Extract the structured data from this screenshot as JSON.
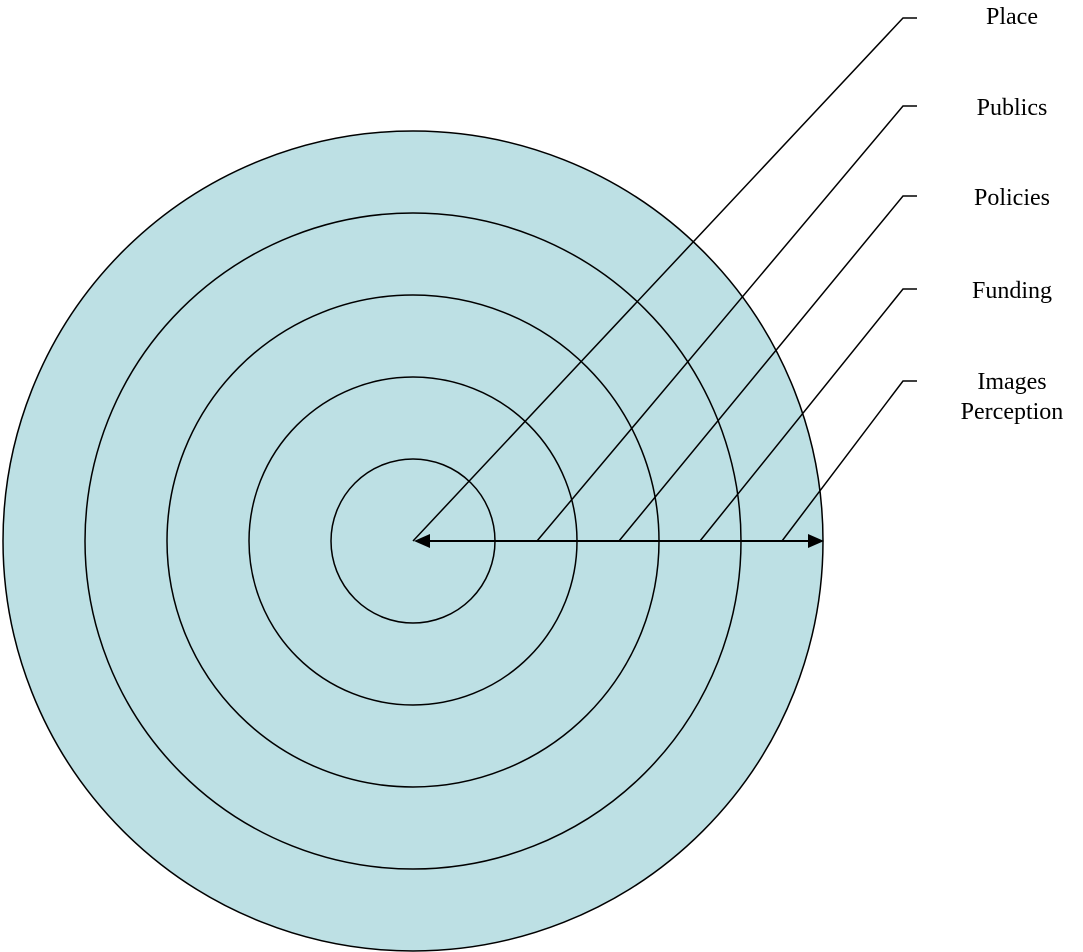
{
  "diagram": {
    "type": "concentric-circles",
    "fill_color": "#bde0e4",
    "stroke_color": "#000000",
    "rings": [
      {
        "label": "Place"
      },
      {
        "label": "Publics"
      },
      {
        "label": "Policies"
      },
      {
        "label": "Funding"
      },
      {
        "label": "Images",
        "label_line2": "Perception"
      }
    ]
  }
}
